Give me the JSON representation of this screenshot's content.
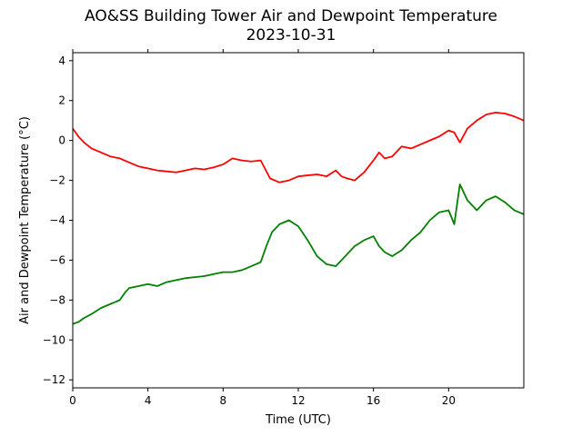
{
  "chart_data": {
    "type": "line",
    "title": "AO&SS Building Tower Air and Dewpoint Temperature",
    "subtitle": "2023-10-31",
    "xlabel": "Time (UTC)",
    "ylabel": "Air and Dewpoint Temperature (°C)",
    "xlim": [
      0,
      24
    ],
    "ylim": [
      -12.4,
      4.4
    ],
    "xticks": [
      0,
      4,
      8,
      12,
      16,
      20
    ],
    "yticks": [
      -12,
      -10,
      -8,
      -6,
      -4,
      -2,
      0,
      2,
      4
    ],
    "grid": false,
    "series": [
      {
        "color": "#ff0000",
        "x": [
          0,
          0.3,
          0.6,
          1,
          1.5,
          2,
          2.5,
          3,
          3.5,
          4,
          4.5,
          5,
          5.5,
          6,
          6.5,
          7,
          7.5,
          8,
          8.5,
          9,
          9.5,
          10,
          10.5,
          11,
          11.5,
          12,
          12.5,
          13,
          13.5,
          14,
          14.3,
          14.6,
          15,
          15.5,
          16,
          16.3,
          16.6,
          17,
          17.5,
          18,
          18.5,
          19,
          19.5,
          20,
          20.3,
          20.6,
          21,
          21.5,
          22,
          22.5,
          23,
          23.5,
          24
        ],
        "y": [
          0.6,
          0.2,
          -0.1,
          -0.4,
          -0.6,
          -0.8,
          -0.9,
          -1.1,
          -1.3,
          -1.4,
          -1.5,
          -1.55,
          -1.6,
          -1.5,
          -1.4,
          -1.45,
          -1.35,
          -1.2,
          -0.9,
          -1.0,
          -1.05,
          -1.0,
          -1.9,
          -2.1,
          -2.0,
          -1.8,
          -1.75,
          -1.7,
          -1.8,
          -1.5,
          -1.8,
          -1.9,
          -2.0,
          -1.6,
          -1.0,
          -0.6,
          -0.9,
          -0.8,
          -0.3,
          -0.4,
          -0.2,
          0.0,
          0.2,
          0.5,
          0.4,
          -0.1,
          0.6,
          1.0,
          1.3,
          1.4,
          1.35,
          1.2,
          1.0
        ]
      },
      {
        "color": "#008000",
        "x": [
          0,
          0.3,
          0.6,
          1,
          1.5,
          2,
          2.5,
          2.8,
          3,
          3.5,
          4,
          4.5,
          5,
          5.5,
          6,
          6.5,
          7,
          7.5,
          8,
          8.5,
          9,
          9.5,
          10,
          10.3,
          10.6,
          11,
          11.5,
          12,
          12.5,
          13,
          13.5,
          14,
          14.3,
          14.6,
          15,
          15.5,
          16,
          16.3,
          16.6,
          17,
          17.5,
          18,
          18.5,
          19,
          19.5,
          20,
          20.3,
          20.6,
          21,
          21.5,
          22,
          22.5,
          23,
          23.5,
          24
        ],
        "y": [
          -9.2,
          -9.1,
          -8.9,
          -8.7,
          -8.4,
          -8.2,
          -8.0,
          -7.6,
          -7.4,
          -7.3,
          -7.2,
          -7.3,
          -7.1,
          -7.0,
          -6.9,
          -6.85,
          -6.8,
          -6.7,
          -6.6,
          -6.6,
          -6.5,
          -6.3,
          -6.1,
          -5.3,
          -4.6,
          -4.2,
          -4.0,
          -4.3,
          -5.0,
          -5.8,
          -6.2,
          -6.3,
          -6.0,
          -5.7,
          -5.3,
          -5.0,
          -4.8,
          -5.3,
          -5.6,
          -5.8,
          -5.5,
          -5.0,
          -4.6,
          -4.0,
          -3.6,
          -3.5,
          -4.2,
          -2.2,
          -3.0,
          -3.5,
          -3.0,
          -2.8,
          -3.1,
          -3.5,
          -3.7
        ]
      }
    ]
  }
}
